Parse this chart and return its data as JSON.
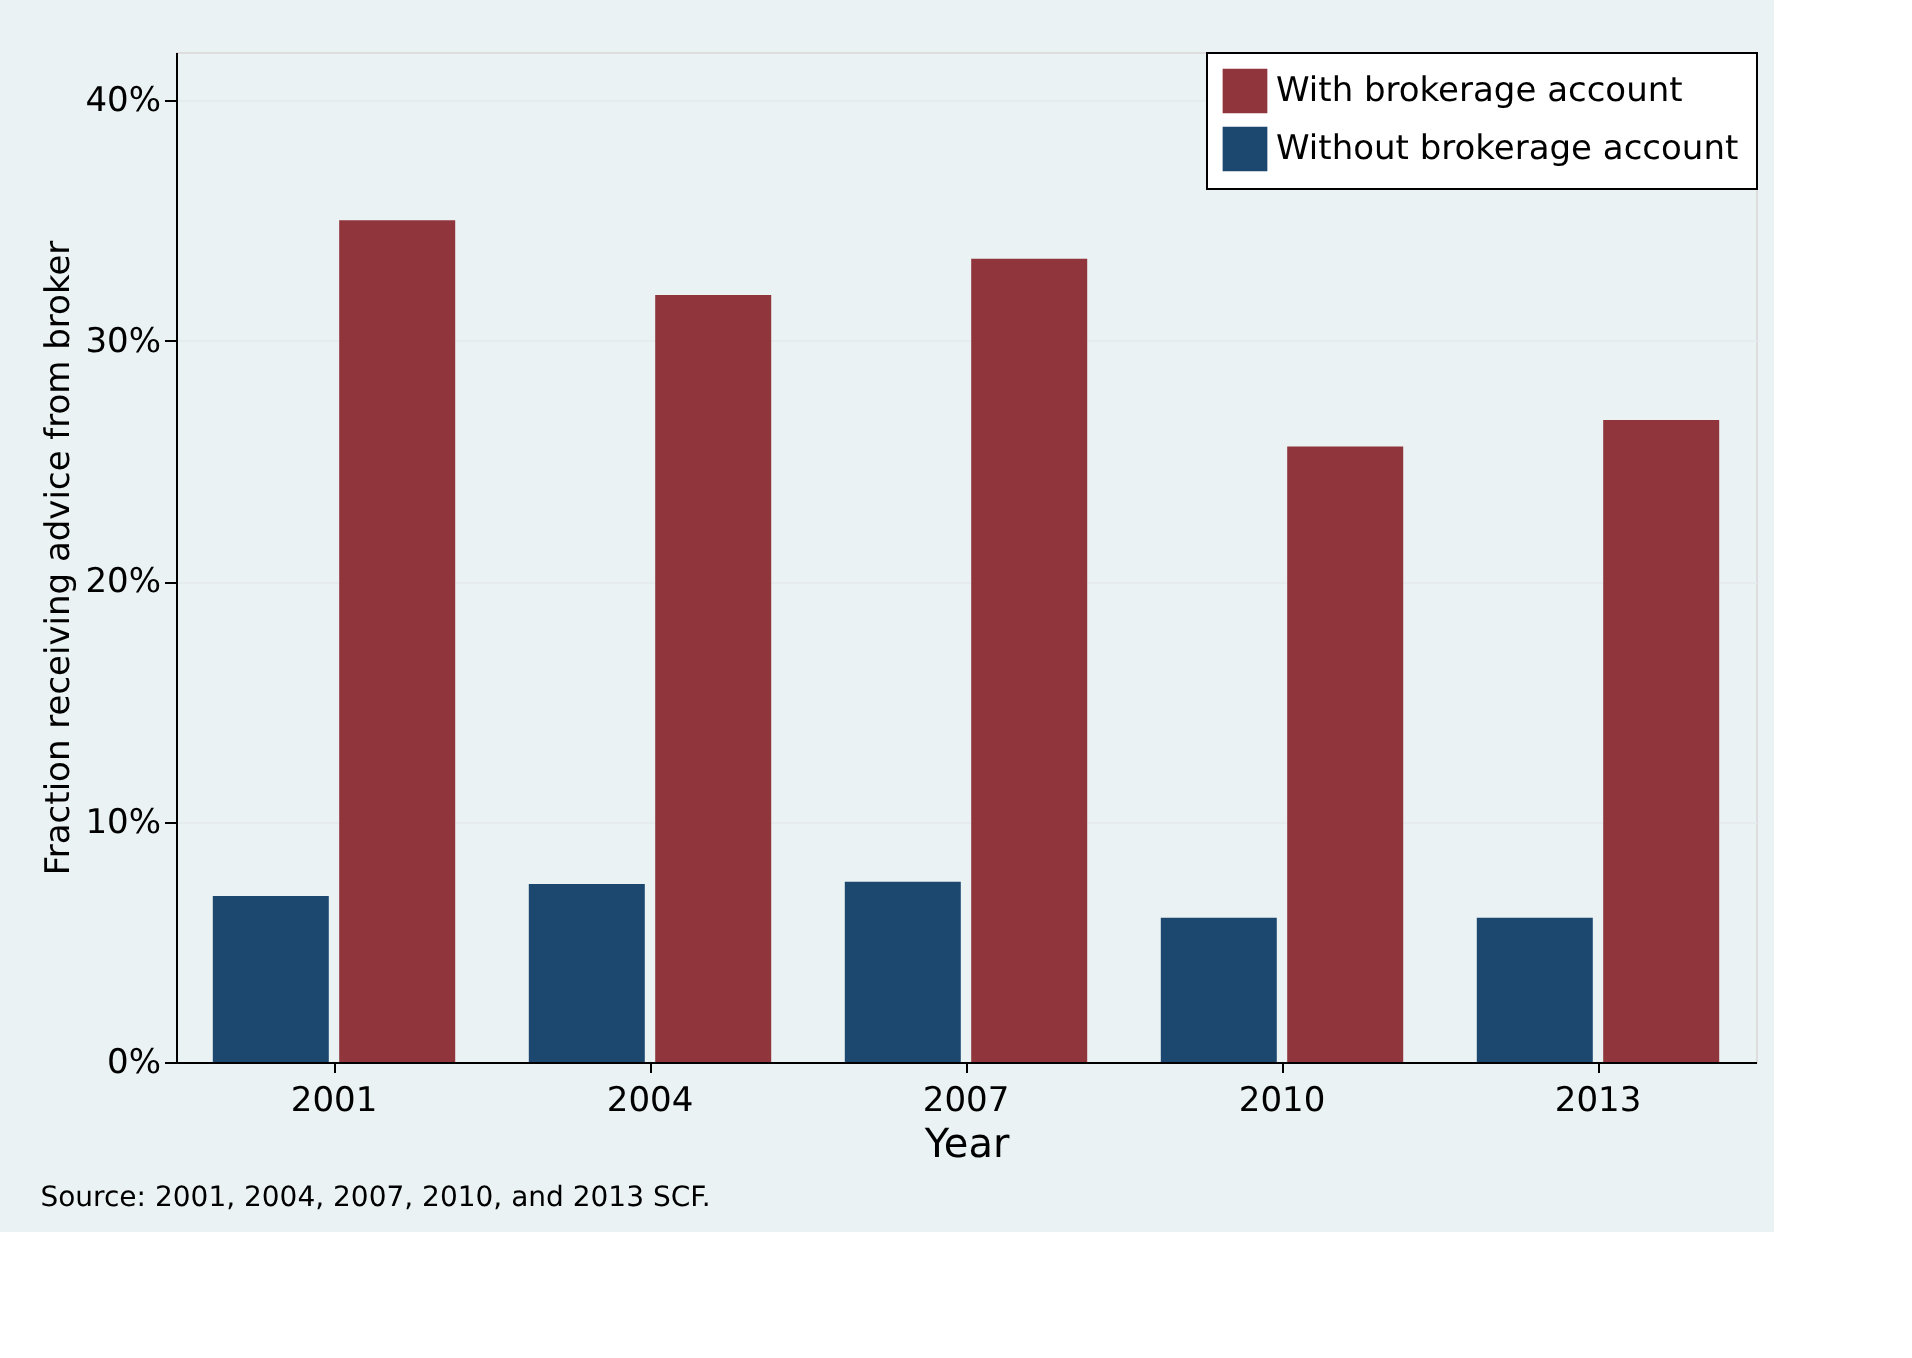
{
  "chart_data": {
    "type": "bar",
    "xlabel": "Year",
    "ylabel": "Fraction receiving advice from broker",
    "categories": [
      "2001",
      "2004",
      "2007",
      "2010",
      "2013"
    ],
    "series": [
      {
        "name": "With brokerage account",
        "color": "#8f353b",
        "values": [
          35.0,
          31.9,
          33.4,
          25.6,
          26.7
        ]
      },
      {
        "name": "Without brokerage account",
        "color": "#1c4870",
        "values": [
          6.9,
          7.4,
          7.5,
          6.0,
          6.0
        ]
      }
    ],
    "ylim": [
      0,
      42
    ],
    "yticks": [
      {
        "value": 0,
        "label": "0%"
      },
      {
        "value": 10,
        "label": "10%"
      },
      {
        "value": 20,
        "label": "20%"
      },
      {
        "value": 30,
        "label": "30%"
      },
      {
        "value": 40,
        "label": "40%"
      }
    ],
    "grid": "y",
    "legend": "top right",
    "annotations": [
      "Source: 2001, 2004, 2007, 2010, and 2013 SCF."
    ]
  }
}
